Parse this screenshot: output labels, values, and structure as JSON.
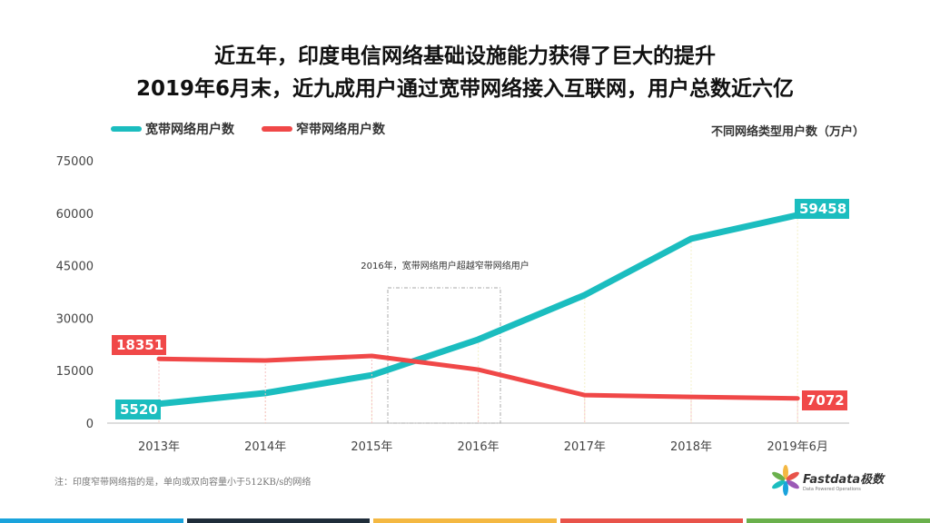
{
  "chart_data": {
    "type": "line",
    "title": [
      "近五年，印度电信网络基础设施能力获得了巨大的提升",
      "2019年6月末，近九成用户通过宽带网络接入互联网，用户总数近六亿"
    ],
    "ylabel": "不同网络类型用户数（万户）",
    "categories": [
      "2013年",
      "2014年",
      "2015年",
      "2016年",
      "2017年",
      "2018年",
      "2019年6月"
    ],
    "yticks": [
      0,
      15000,
      30000,
      45000,
      60000,
      75000
    ],
    "ylim": [
      0,
      75000
    ],
    "series": [
      {
        "name": "宽带网络用户数",
        "color": "#1BBDBF",
        "values": [
          5520,
          8600,
          13700,
          23900,
          36600,
          52700,
          59458
        ]
      },
      {
        "name": "窄带网络用户数",
        "color": "#F04848",
        "values": [
          18351,
          17900,
          19200,
          15300,
          8000,
          7500,
          7072
        ]
      }
    ],
    "data_labels": {
      "broadband_first": "5520",
      "broadband_last": "59458",
      "narrow_first": "18351",
      "narrow_last": "7072"
    },
    "annotation": "2016年，宽带网络用户超越窄带网络用户",
    "legend": "top-left",
    "grid": false
  },
  "note": "注：印度窄带网络指的是，单向或双向容量小于512KB/s的网络",
  "logo": {
    "name": "Fastdata极数",
    "tagline": "Data Powered Operations"
  },
  "footer_colors": [
    "#1AA3DC",
    "#1F2D3A",
    "#F4B842",
    "#E8534A",
    "#6AB04C"
  ]
}
